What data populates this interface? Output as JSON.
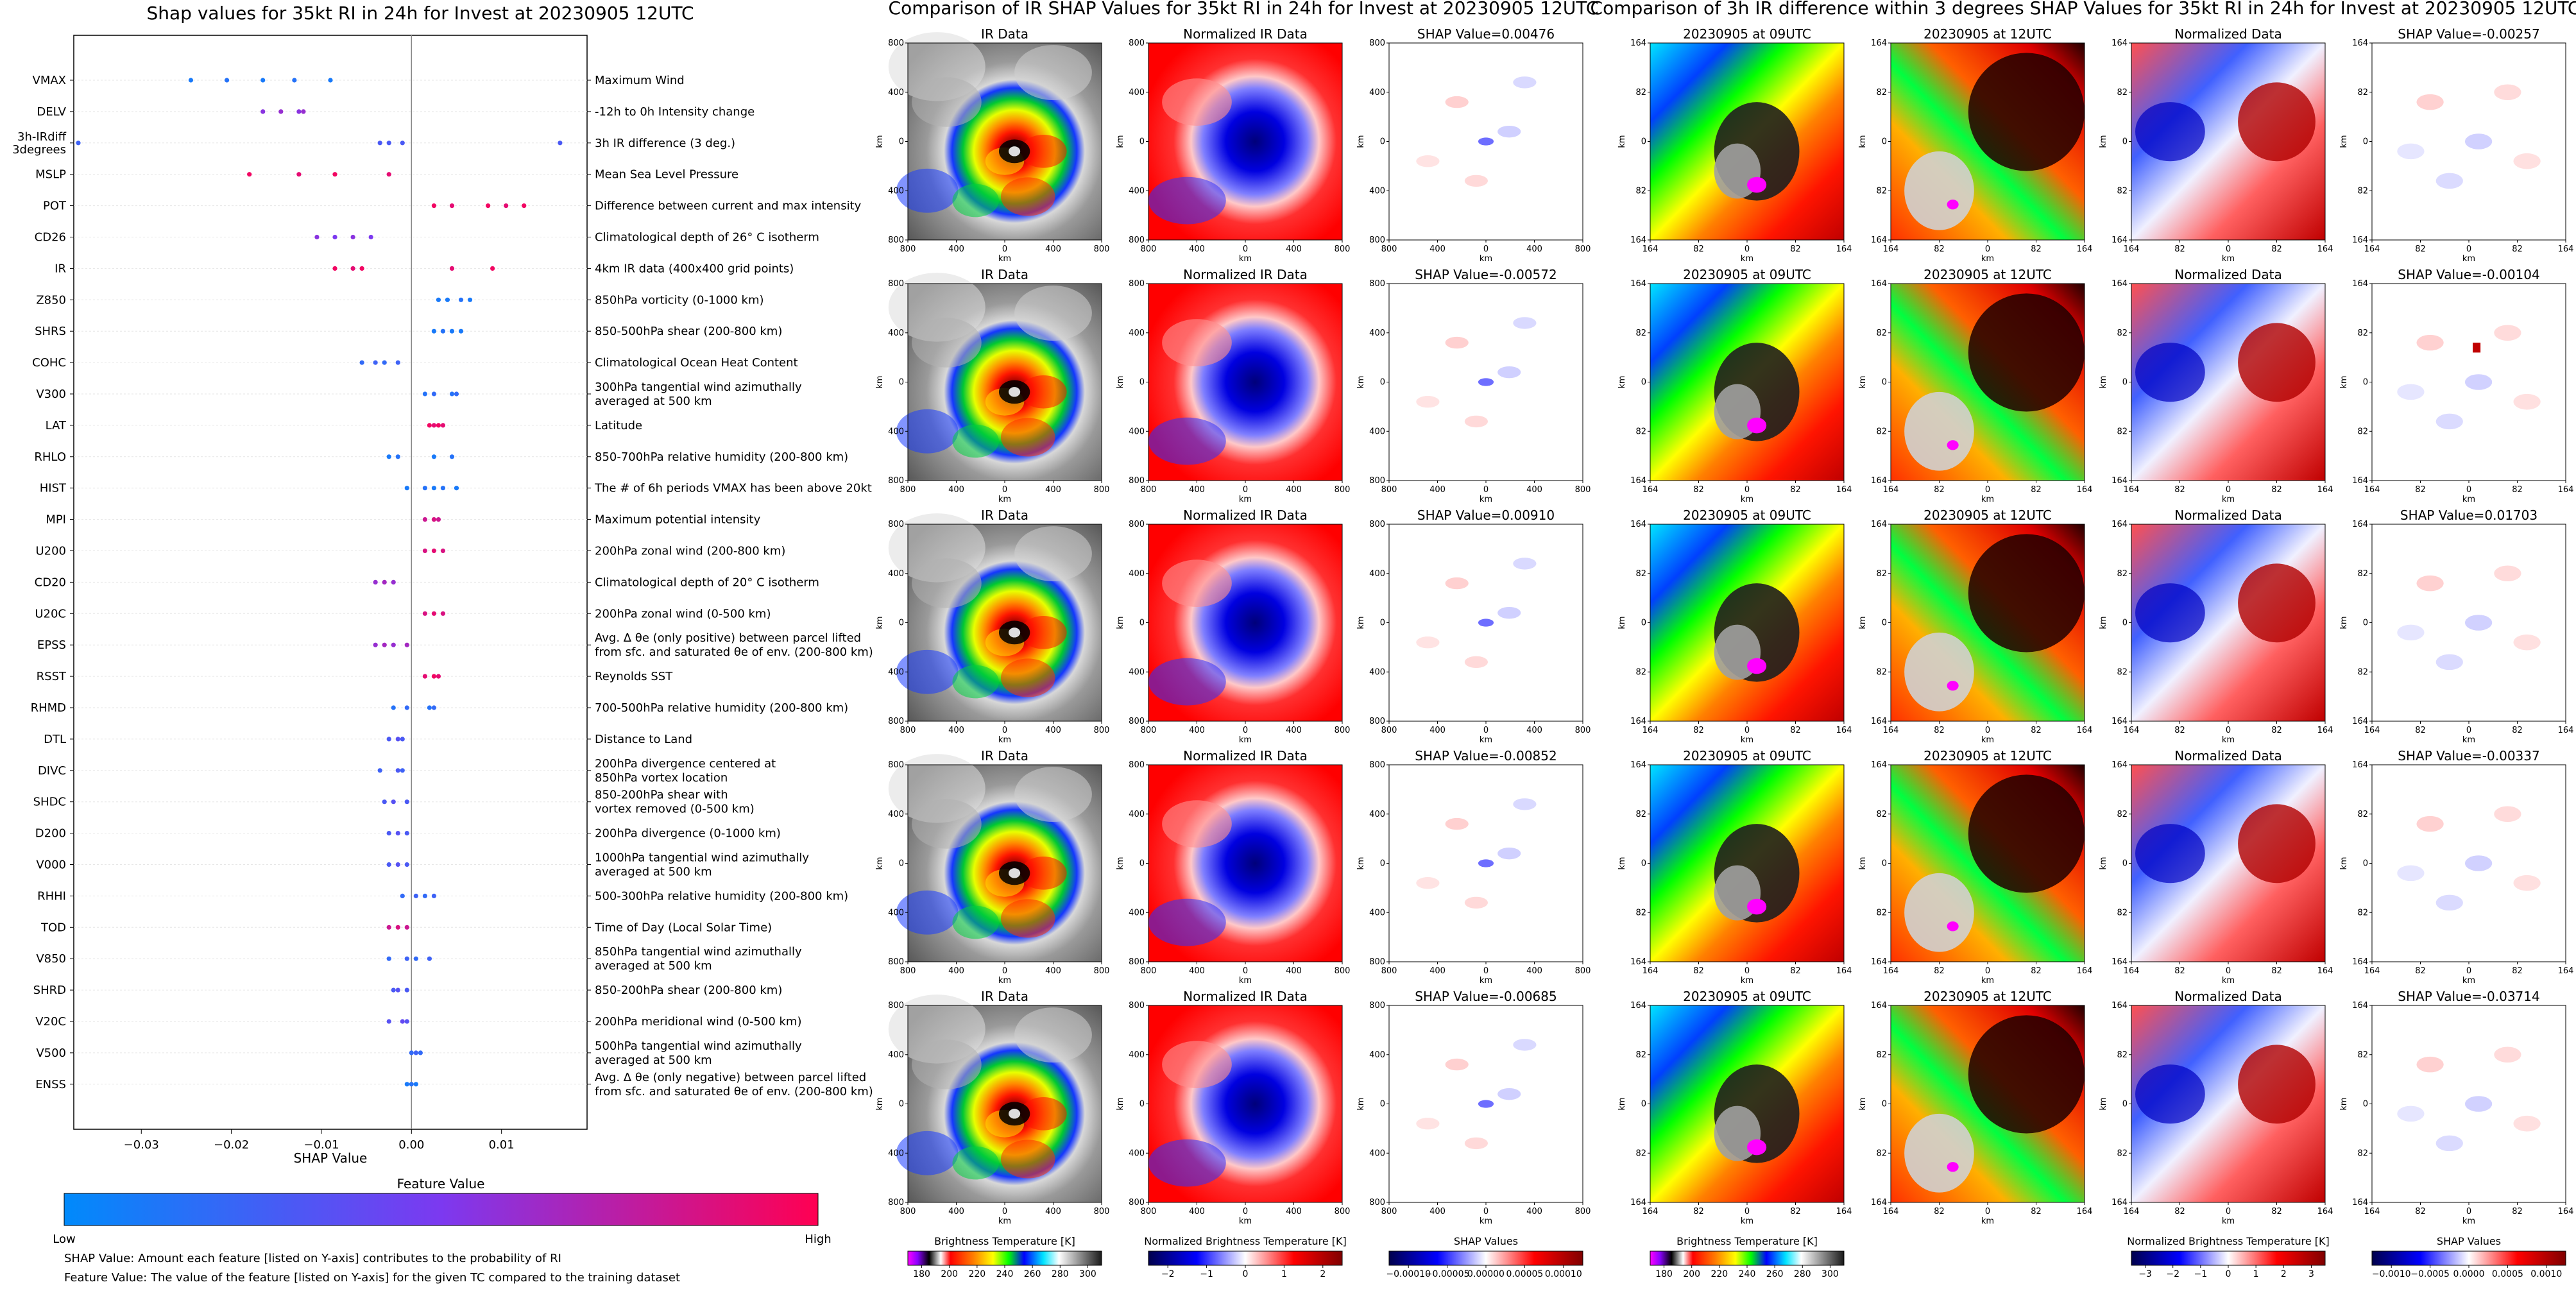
{
  "figure_width": 4015,
  "figure_height": 2009,
  "beeswarm": {
    "title": "Shap values for 35kt RI in 24h for Invest at 20230905 12UTC",
    "xlabel": "SHAP Value",
    "xticks": [
      "−0.03",
      "−0.02",
      "−0.01",
      "0.00",
      "0.01"
    ],
    "colorbar_title": "Feature Value",
    "colorbar_low": "Low",
    "colorbar_high": "High",
    "footnote1": "SHAP Value: Amount each feature [listed on Y-axis] contributes to the probability of RI",
    "footnote2": "Feature Value: The value of the feature [listed on Y-axis] for the given TC compared to the training dataset",
    "colors": {
      "low": "#008afb",
      "mid": "#7c39f0",
      "high": "#ff0052"
    }
  },
  "chart_data": {
    "type": "scatter",
    "title": "Shap values for 35kt RI in 24h for Invest at 20230905 12UTC",
    "xlabel": "SHAP Value",
    "ylabel": "",
    "xlim": [
      -0.0375,
      0.0195
    ],
    "features": [
      {
        "abbr": "VMAX",
        "desc": "Maximum Wind",
        "shap": [
          -0.0245,
          -0.0205,
          -0.0165,
          -0.013,
          -0.009
        ],
        "val": [
          0.1,
          0.15,
          0.1,
          0.15,
          0.1
        ]
      },
      {
        "abbr": "DELV",
        "desc": "-12h to 0h Intensity change",
        "shap": [
          -0.0165,
          -0.0145,
          -0.0125,
          -0.012
        ],
        "val": [
          0.55,
          0.6,
          0.55,
          0.6
        ]
      },
      {
        "abbr": "3h-IRdiff\n3degrees",
        "desc": "3h IR difference (3 deg.)",
        "shap": [
          -0.037,
          -0.0035,
          -0.0025,
          -0.001,
          0.0165
        ],
        "val": [
          0.25,
          0.3,
          0.3,
          0.3,
          0.3
        ]
      },
      {
        "abbr": "MSLP",
        "desc": "Mean Sea Level Pressure",
        "shap": [
          -0.018,
          -0.0125,
          -0.0085,
          -0.0025
        ],
        "val": [
          0.95,
          0.9,
          0.95,
          0.9
        ]
      },
      {
        "abbr": "POT",
        "desc": "Difference between current and max intensity",
        "shap": [
          0.0025,
          0.0045,
          0.0085,
          0.0105,
          0.0125
        ],
        "val": [
          0.95,
          0.9,
          0.95,
          0.9,
          0.95
        ]
      },
      {
        "abbr": "CD26",
        "desc": "Climatological depth of 26° C isotherm",
        "shap": [
          -0.0105,
          -0.0085,
          -0.0065,
          -0.0045
        ],
        "val": [
          0.55,
          0.5,
          0.55,
          0.5
        ]
      },
      {
        "abbr": "IR",
        "desc": "4km IR data (400x400 grid points)",
        "shap": [
          -0.0085,
          -0.0065,
          -0.0055,
          0.0045,
          0.009
        ],
        "val": [
          0.95,
          0.9,
          0.95,
          0.9,
          0.95
        ]
      },
      {
        "abbr": "Z850",
        "desc": "850hPa vorticity (0-1000 km)",
        "shap": [
          0.003,
          0.004,
          0.0055,
          0.0065
        ],
        "val": [
          0.1,
          0.1,
          0.15,
          0.1
        ]
      },
      {
        "abbr": "SHRS",
        "desc": "850-500hPa shear (200-800 km)",
        "shap": [
          0.0025,
          0.0035,
          0.0045,
          0.0055
        ],
        "val": [
          0.1,
          0.15,
          0.1,
          0.1
        ]
      },
      {
        "abbr": "COHC",
        "desc": "Climatological Ocean Heat Content",
        "shap": [
          -0.0055,
          -0.004,
          -0.003,
          -0.0015
        ],
        "val": [
          0.2,
          0.25,
          0.2,
          0.25
        ]
      },
      {
        "abbr": "V300",
        "desc": "300hPa tangential wind azimuthally\naveraged at 500 km",
        "shap": [
          0.0015,
          0.0025,
          0.0045,
          0.005
        ],
        "val": [
          0.15,
          0.2,
          0.15,
          0.2
        ]
      },
      {
        "abbr": "LAT",
        "desc": "Latitude",
        "shap": [
          0.002,
          0.0025,
          0.003,
          0.0035
        ],
        "val": [
          0.95,
          0.9,
          0.95,
          0.9
        ]
      },
      {
        "abbr": "RHLO",
        "desc": "850-700hPa relative humidity (200-800 km)",
        "shap": [
          -0.0025,
          -0.0015,
          0.0025,
          0.0045
        ],
        "val": [
          0.1,
          0.15,
          0.1,
          0.15
        ]
      },
      {
        "abbr": "HIST",
        "desc": "The # of 6h periods VMAX has been above 20kt",
        "shap": [
          -0.0005,
          0.0015,
          0.0025,
          0.0035,
          0.005
        ],
        "val": [
          0.1,
          0.15,
          0.1,
          0.15,
          0.1
        ]
      },
      {
        "abbr": "MPI",
        "desc": "Maximum potential intensity",
        "shap": [
          0.0015,
          0.0025,
          0.003
        ],
        "val": [
          0.8,
          0.85,
          0.8
        ]
      },
      {
        "abbr": "U200",
        "desc": "200hPa zonal wind (200-800 km)",
        "shap": [
          0.0015,
          0.0025,
          0.0035
        ],
        "val": [
          0.85,
          0.9,
          0.85
        ]
      },
      {
        "abbr": "CD20",
        "desc": "Climatological depth of 20° C isotherm",
        "shap": [
          -0.004,
          -0.003,
          -0.002
        ],
        "val": [
          0.6,
          0.65,
          0.6
        ]
      },
      {
        "abbr": "U20C",
        "desc": "200hPa zonal wind (0-500 km)",
        "shap": [
          0.0015,
          0.0025,
          0.0035
        ],
        "val": [
          0.85,
          0.9,
          0.85
        ]
      },
      {
        "abbr": "EPSS",
        "desc": "Avg. Δ θe (only positive) between parcel lifted\nfrom sfc. and saturated θe of env. (200-800 km)",
        "shap": [
          -0.004,
          -0.003,
          -0.002,
          -0.0005
        ],
        "val": [
          0.6,
          0.65,
          0.6,
          0.65
        ]
      },
      {
        "abbr": "RSST",
        "desc": "Reynolds SST",
        "shap": [
          0.0015,
          0.0025,
          0.003
        ],
        "val": [
          0.9,
          0.95,
          0.9
        ]
      },
      {
        "abbr": "RHMD",
        "desc": "700-500hPa relative humidity (200-800 km)",
        "shap": [
          -0.002,
          -0.0005,
          0.002,
          0.0025
        ],
        "val": [
          0.15,
          0.2,
          0.15,
          0.2
        ]
      },
      {
        "abbr": "DTL",
        "desc": "Distance to Land",
        "shap": [
          -0.0025,
          -0.0015,
          -0.001
        ],
        "val": [
          0.3,
          0.35,
          0.3
        ]
      },
      {
        "abbr": "DIVC",
        "desc": "200hPa divergence centered at\n850hPa vortex location",
        "shap": [
          -0.0035,
          -0.0015,
          -0.001
        ],
        "val": [
          0.25,
          0.3,
          0.25
        ]
      },
      {
        "abbr": "SHDC",
        "desc": "850-200hPa shear with\nvortex removed (0-500 km)",
        "shap": [
          -0.003,
          -0.002,
          -0.0005
        ],
        "val": [
          0.3,
          0.35,
          0.3
        ]
      },
      {
        "abbr": "D200",
        "desc": "200hPa divergence (0-1000 km)",
        "shap": [
          -0.0025,
          -0.0015,
          -0.0005
        ],
        "val": [
          0.3,
          0.35,
          0.3
        ]
      },
      {
        "abbr": "V000",
        "desc": "1000hPa tangential wind azimuthally\naveraged at 500 km",
        "shap": [
          -0.0025,
          -0.0015,
          -0.0005
        ],
        "val": [
          0.3,
          0.35,
          0.3
        ]
      },
      {
        "abbr": "RHHI",
        "desc": "500-300hPa relative humidity (200-800 km)",
        "shap": [
          -0.001,
          0.0005,
          0.0015,
          0.0025
        ],
        "val": [
          0.2,
          0.25,
          0.2,
          0.25
        ]
      },
      {
        "abbr": "TOD",
        "desc": "Time of Day (Local Solar Time)",
        "shap": [
          -0.0025,
          -0.0015,
          -0.0005
        ],
        "val": [
          0.8,
          0.85,
          0.8
        ]
      },
      {
        "abbr": "V850",
        "desc": "850hPa tangential wind azimuthally\naveraged at 500 km",
        "shap": [
          -0.0025,
          -0.0005,
          0.0005,
          0.002
        ],
        "val": [
          0.2,
          0.25,
          0.2,
          0.25
        ]
      },
      {
        "abbr": "SHRD",
        "desc": "850-200hPa shear (200-800 km)",
        "shap": [
          -0.002,
          -0.0015,
          -0.0005
        ],
        "val": [
          0.3,
          0.35,
          0.3
        ]
      },
      {
        "abbr": "V20C",
        "desc": "200hPa meridional wind (0-500 km)",
        "shap": [
          -0.0025,
          -0.001,
          -0.0005
        ],
        "val": [
          0.35,
          0.4,
          0.35
        ]
      },
      {
        "abbr": "V500",
        "desc": "500hPa tangential wind azimuthally\naveraged at 500 km",
        "shap": [
          0.0,
          0.0005,
          0.001
        ],
        "val": [
          0.2,
          0.25,
          0.2
        ]
      },
      {
        "abbr": "ENSS",
        "desc": "Avg. Δ θe (only negative) between parcel lifted\nfrom sfc. and saturated θe of env. (200-800 km)",
        "shap": [
          -0.0005,
          0.0,
          0.0005
        ],
        "val": [
          0.1,
          0.15,
          0.1
        ]
      }
    ]
  },
  "left_grid": {
    "title": "Comparison of IR SHAP Values for 35kt RI in 24h for Invest at 20230905 12UTC",
    "col_titles": [
      "IR Data",
      "Normalized IR Data"
    ],
    "shap_titles": [
      "SHAP Value=0.00476",
      "SHAP Value=-0.00572",
      "SHAP Value=0.00910",
      "SHAP Value=-0.00852",
      "SHAP Value=-0.00685"
    ],
    "ylabel": "km",
    "xlabel": "km",
    "xticks": [
      "800",
      "400",
      "0",
      "400",
      "800"
    ],
    "yticks": [
      "800",
      "400",
      "0",
      "400",
      "800"
    ],
    "colorbars": [
      {
        "label": "Brightness Temperature [K]",
        "ticks": [
          "180",
          "200",
          "220",
          "240",
          "260",
          "280",
          "300"
        ],
        "type": "ir"
      },
      {
        "label": "Normalized Brightness Temperature [K]",
        "ticks": [
          "−2",
          "−1",
          "0",
          "1",
          "2"
        ],
        "type": "div"
      },
      {
        "label": "SHAP Values",
        "ticks": [
          "−0.00010",
          "−0.00005",
          "0.00000",
          "0.00005",
          "0.00010"
        ],
        "type": "div"
      }
    ]
  },
  "right_grid": {
    "title": "Comparison of 3h IR difference within 3 degrees SHAP Values for 35kt RI in 24h for Invest at 20230905 12UTC",
    "col_titles": [
      "20230905 at 09UTC",
      "20230905 at 12UTC",
      "Normalized Data"
    ],
    "shap_titles": [
      "SHAP Value=-0.00257",
      "SHAP Value=-0.00104",
      "SHAP Value=0.01703",
      "SHAP Value=-0.00337",
      "SHAP Value=-0.03714"
    ],
    "ylabel": "km",
    "xlabel": "km",
    "xticks": [
      "164",
      "82",
      "0",
      "82",
      "164"
    ],
    "yticks": [
      "164",
      "82",
      "0",
      "82",
      "164"
    ],
    "colorbars": [
      {
        "label": "Brightness Temperature [K]",
        "ticks": [
          "180",
          "200",
          "220",
          "240",
          "260",
          "280",
          "300"
        ],
        "type": "ir"
      },
      {
        "label": "Normalized Brightness Temperature [K]",
        "ticks": [
          "−3",
          "−2",
          "−1",
          "0",
          "1",
          "2",
          "3"
        ],
        "type": "div"
      },
      {
        "label": "SHAP Values",
        "ticks": [
          "−0.0010",
          "−0.0005",
          "0.0000",
          "0.0005",
          "0.0010"
        ],
        "type": "div"
      }
    ]
  }
}
